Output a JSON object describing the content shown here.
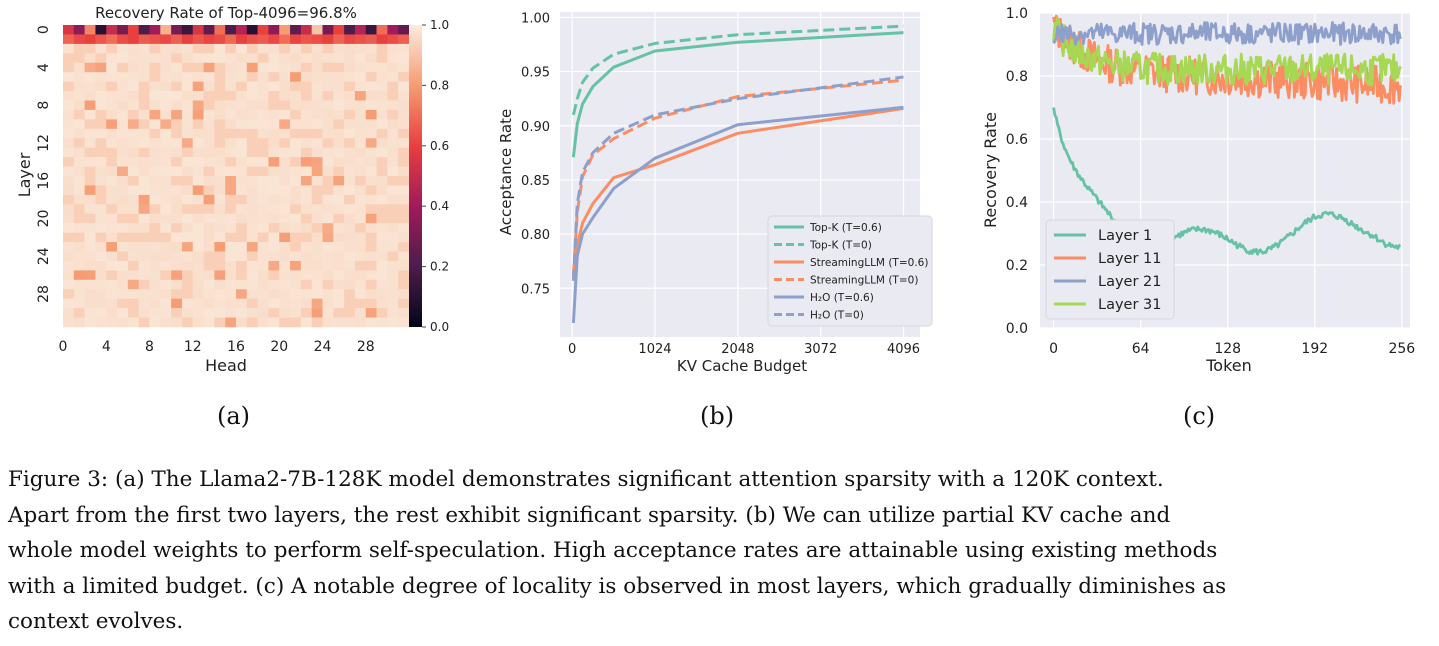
{
  "charts": {
    "a": {
      "type": "heatmap",
      "title": "Recovery Rate of Top-4096=96.8%",
      "xlabel": "Head",
      "ylabel": "Layer",
      "x_ticks": [
        "0",
        "4",
        "8",
        "12",
        "16",
        "20",
        "24",
        "28"
      ],
      "y_ticks": [
        "0",
        "4",
        "8",
        "12",
        "16",
        "20",
        "24",
        "28"
      ],
      "colorbar_ticks": [
        "1.0",
        "0.8",
        "0.6",
        "0.4",
        "0.2",
        "0.0"
      ],
      "rows": 32,
      "cols": 32,
      "layer0_values": [
        0.55,
        0.35,
        0.75,
        0.1,
        0.5,
        0.3,
        0.6,
        0.2,
        0.4,
        0.85,
        0.3,
        0.15,
        0.55,
        0.25,
        0.7,
        0.2,
        0.45,
        0.1,
        0.6,
        0.35,
        0.8,
        0.25,
        0.5,
        0.9,
        0.3,
        0.6,
        0.2,
        0.45,
        0.15,
        0.7,
        0.4,
        0.25
      ],
      "layer1_values": [
        0.68,
        0.62,
        0.6,
        0.65,
        0.7,
        0.63,
        0.6,
        0.66,
        0.64,
        0.62,
        0.67,
        0.6,
        0.65,
        0.61,
        0.63,
        0.69,
        0.6,
        0.64,
        0.66,
        0.62,
        0.7,
        0.61,
        0.65,
        0.63,
        0.6,
        0.68,
        0.62,
        0.64,
        0.66,
        0.6,
        0.63,
        0.67
      ]
    },
    "b": {
      "type": "line",
      "xlabel": "KV Cache Budget",
      "ylabel": "Acceptance Rate",
      "x_ticks": [
        "0",
        "1024",
        "2048",
        "3072",
        "4096"
      ],
      "y_ticks": [
        "0.75",
        "0.80",
        "0.85",
        "0.90",
        "0.95",
        "1.00"
      ],
      "xlim": [
        -150,
        4300
      ],
      "ylim": [
        0.705,
        1.005
      ],
      "x": [
        16,
        64,
        128,
        256,
        512,
        1024,
        2048,
        4096
      ],
      "series": [
        {
          "name": "Top-K (T=0.6)",
          "color": "#66c2a5",
          "dash": false,
          "values": [
            0.871,
            0.902,
            0.92,
            0.936,
            0.954,
            0.969,
            0.977,
            0.986
          ]
        },
        {
          "name": "Top-K  (T=0)",
          "color": "#66c2a5",
          "dash": true,
          "values": [
            0.91,
            0.925,
            0.94,
            0.953,
            0.966,
            0.976,
            0.984,
            0.992
          ]
        },
        {
          "name": "StreamingLLM (T=0.6)",
          "color": "#fc8d62",
          "dash": false,
          "values": [
            0.757,
            0.79,
            0.81,
            0.828,
            0.852,
            0.864,
            0.893,
            0.916
          ]
        },
        {
          "name": "StreamingLLM (T=0)",
          "color": "#fc8d62",
          "dash": true,
          "values": [
            0.762,
            0.82,
            0.853,
            0.873,
            0.888,
            0.907,
            0.927,
            0.942
          ]
        },
        {
          "name": "H₂O (T=0.6)",
          "color": "#8da0cb",
          "dash": false,
          "values": [
            0.718,
            0.78,
            0.8,
            0.815,
            0.842,
            0.87,
            0.901,
            0.917
          ]
        },
        {
          "name": "H₂O (T=0)",
          "color": "#8da0cb",
          "dash": true,
          "values": [
            0.757,
            0.828,
            0.857,
            0.875,
            0.893,
            0.91,
            0.925,
            0.945
          ]
        }
      ]
    },
    "c": {
      "type": "line",
      "xlabel": "Token",
      "ylabel": "Recovery Rate",
      "x_ticks": [
        "0",
        "64",
        "128",
        "192",
        "256"
      ],
      "y_ticks": [
        "0.0",
        "0.2",
        "0.4",
        "0.6",
        "0.8",
        "1.0"
      ],
      "xlim": [
        -10,
        262
      ],
      "ylim": [
        0.0,
        1.0
      ],
      "series": [
        {
          "name": "Layer 1",
          "color": "#66c2a5",
          "base": "layer1"
        },
        {
          "name": "Layer 11",
          "color": "#fc8d62",
          "base": "layer11"
        },
        {
          "name": "Layer 21",
          "color": "#8da0cb",
          "base": "layer21"
        },
        {
          "name": "Layer 31",
          "color": "#a6d854",
          "base": "layer31"
        }
      ]
    }
  },
  "sublabels": {
    "a": "(a)",
    "b": "(b)",
    "c": "(c)"
  },
  "caption": {
    "line1": "Figure 3: (a) The Llama2-7B-128K model demonstrates significant attention sparsity with a 120K context.",
    "line2": "Apart from the first two layers, the rest exhibit significant sparsity. (b) We can utilize partial KV cache and",
    "line3": "whole model weights to perform self-speculation. High acceptance rates are attainable using existing methods",
    "line4": "with a limited budget. (c) A notable degree of locality is observed in most layers, which gradually diminishes as",
    "line5": "context evolves."
  }
}
